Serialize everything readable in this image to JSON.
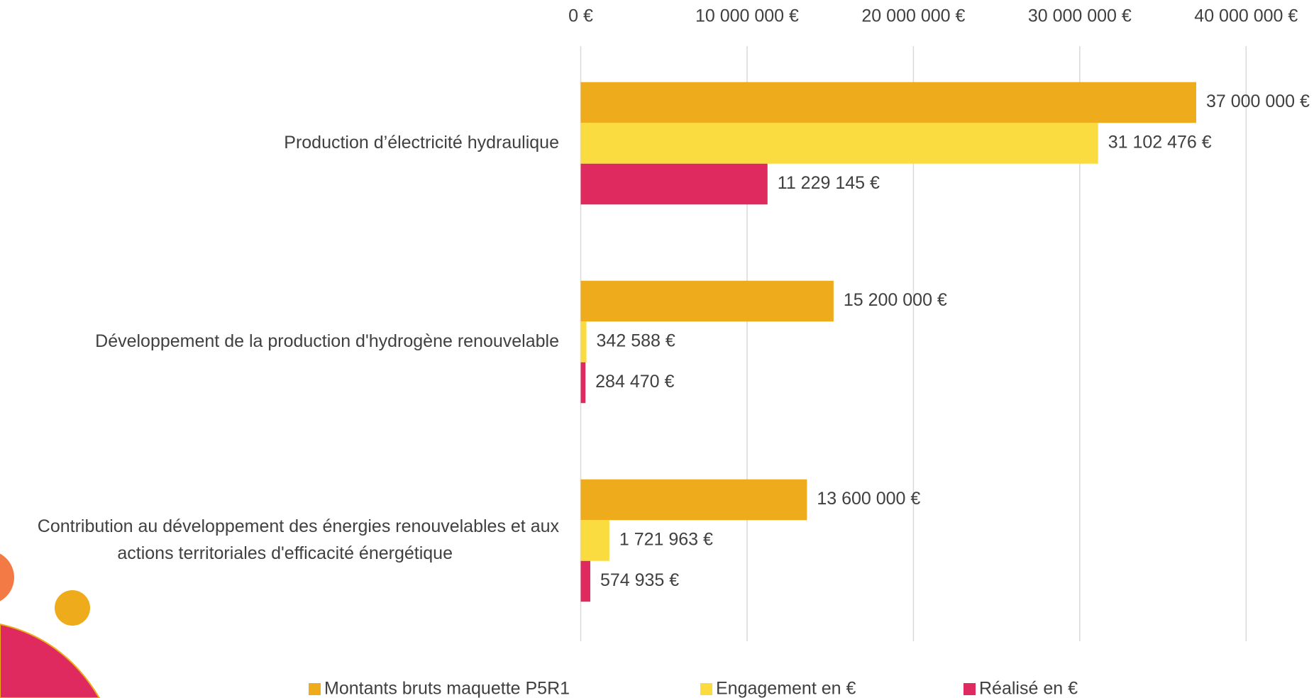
{
  "chart_data": {
    "type": "bar",
    "orientation": "horizontal",
    "categories": [
      "Production d’électricité hydraulique",
      "Développement de la production d'hydrogène renouvelable",
      "Contribution au développement des énergies renouvelables et aux\nactions territoriales d'efficacité énergétique"
    ],
    "series": [
      {
        "name": "Montants bruts maquette P5R1",
        "color": "#eeab1c",
        "values": [
          37000000,
          15200000,
          13600000
        ],
        "value_labels": [
          "37 000 000 €",
          "15 200 000 €",
          "13 600 000 €"
        ]
      },
      {
        "name": "Engagement en €",
        "color": "#fadc41",
        "values": [
          31102476,
          342588,
          1721963
        ],
        "value_labels": [
          "31 102 476 €",
          "342 588 €",
          "1 721 963 €"
        ]
      },
      {
        "name": "Réalisé en €",
        "color": "#de2a5e",
        "values": [
          11229145,
          284470,
          574935
        ],
        "value_labels": [
          "11 229 145 €",
          "284 470 €",
          "574 935 €"
        ]
      }
    ],
    "xlim": [
      0,
      40000000
    ],
    "xticks": [
      {
        "value": 0,
        "label": "0 €"
      },
      {
        "value": 10000000,
        "label": "10 000 000 €"
      },
      {
        "value": 20000000,
        "label": "20 000 000 €"
      },
      {
        "value": 30000000,
        "label": "30 000 000 €"
      },
      {
        "value": 40000000,
        "label": "40 000 000 €"
      }
    ],
    "grid": true,
    "legend": "bottom"
  }
}
